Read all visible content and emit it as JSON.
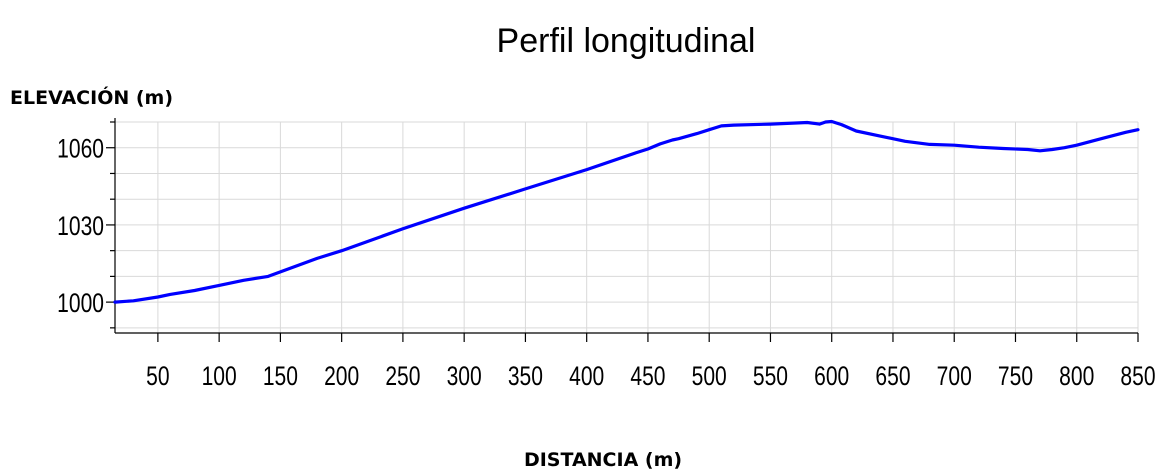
{
  "chart_data": {
    "type": "line",
    "title": "Perfil longitudinal",
    "xlabel": "DISTANCIA (m)",
    "ylabel": "ELEVACIÓN (m)",
    "xlim": [
      15,
      850
    ],
    "ylim": [
      988,
      1070
    ],
    "x_ticks": [
      50,
      100,
      150,
      200,
      250,
      300,
      350,
      400,
      450,
      500,
      550,
      600,
      650,
      700,
      750,
      800,
      850
    ],
    "y_ticks": [
      1000,
      1030,
      1060
    ],
    "grid": true,
    "line_color": "#0000ff",
    "series": [
      {
        "x": [
          15,
          30,
          50,
          60,
          80,
          100,
          120,
          140,
          160,
          180,
          200,
          250,
          300,
          350,
          400,
          440,
          450,
          460,
          470,
          475,
          490,
          500,
          510,
          520,
          550,
          580,
          590,
          595,
          600,
          608,
          620,
          640,
          660,
          680,
          700,
          720,
          740,
          760,
          770,
          780,
          790,
          800,
          820,
          840,
          850
        ],
        "y": [
          1000,
          1000.5,
          1002,
          1003,
          1004.5,
          1006.5,
          1008.5,
          1010,
          1013.5,
          1017,
          1020,
          1028.5,
          1036.5,
          1044,
          1051.5,
          1058,
          1059.5,
          1061.5,
          1063,
          1063.5,
          1065.5,
          1067,
          1068.5,
          1068.8,
          1069.2,
          1069.8,
          1069.2,
          1070,
          1070.2,
          1069,
          1066.5,
          1064.5,
          1062.5,
          1061.3,
          1061,
          1060.2,
          1059.7,
          1059.3,
          1058.8,
          1059.3,
          1060,
          1061,
          1063.5,
          1066,
          1067
        ]
      }
    ]
  }
}
